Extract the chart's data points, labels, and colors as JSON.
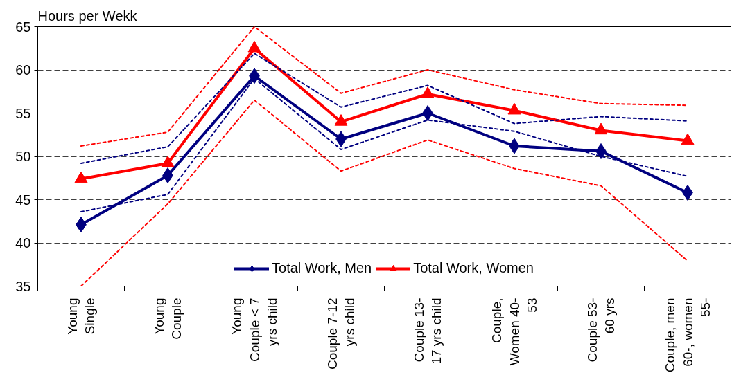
{
  "chart_data": {
    "type": "line",
    "ylabel": "Hours per Wekk",
    "categories": [
      "Young Single",
      "Young Couple",
      "Young Couple < 7 yrs child",
      "Couple 7-12 yrs child",
      "Couple 13-17 yrs child",
      "Couple, Women 40-53",
      "Couple 53-60 yrs",
      "Couple, men 60-, women 55-"
    ],
    "ylim": [
      35,
      65
    ],
    "yticks": [
      35,
      40,
      45,
      50,
      55,
      60,
      65
    ],
    "grid": "y",
    "legend": "bottom",
    "series": [
      {
        "name": "Total Work, Men",
        "color": "#000080",
        "marker": "diamond",
        "line_style": "solid",
        "values": [
          42.1,
          47.8,
          59.3,
          52.0,
          55.0,
          51.2,
          50.6,
          45.8
        ]
      },
      {
        "name": "Total Work, Women",
        "color": "#ff0000",
        "marker": "triangle",
        "line_style": "solid",
        "values": [
          47.4,
          49.2,
          62.5,
          54.0,
          57.2,
          55.3,
          53.0,
          51.8
        ]
      },
      {
        "color": "#000080",
        "marker": "none",
        "line_style": "dotted",
        "values": [
          49.2,
          51.1,
          61.9,
          55.7,
          58.2,
          53.8,
          54.6,
          54.1
        ]
      },
      {
        "color": "#000080",
        "marker": "none",
        "line_style": "dotted",
        "values": [
          43.6,
          45.6,
          59.0,
          50.8,
          54.2,
          52.9,
          50.0,
          47.7
        ]
      },
      {
        "color": "#ff0000",
        "marker": "none",
        "line_style": "dotted",
        "values": [
          51.2,
          52.8,
          65.0,
          57.3,
          60.0,
          57.7,
          56.1,
          55.9
        ]
      },
      {
        "color": "#ff0000",
        "marker": "none",
        "line_style": "dotted",
        "values": [
          35.0,
          44.5,
          56.5,
          48.3,
          51.9,
          48.6,
          46.6,
          37.9
        ]
      }
    ]
  }
}
